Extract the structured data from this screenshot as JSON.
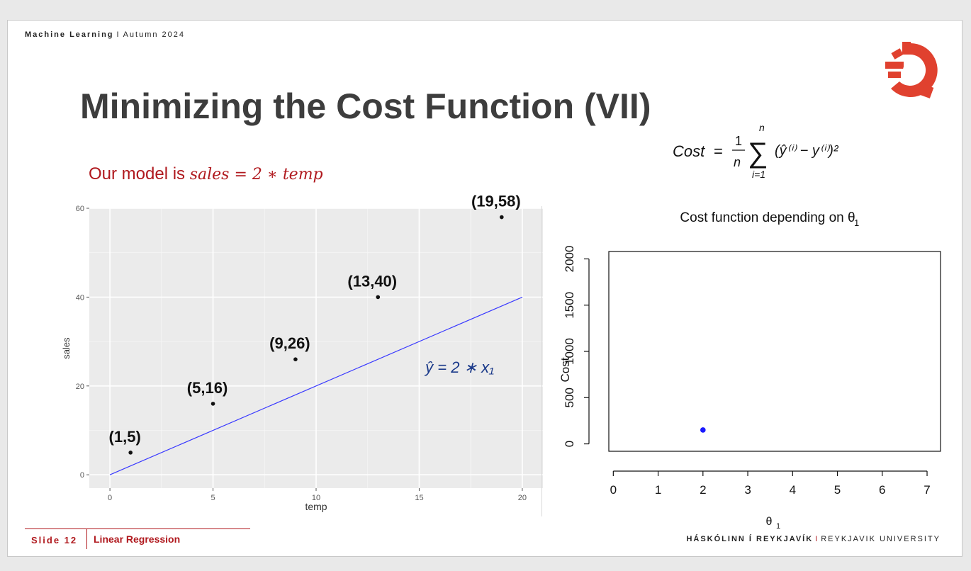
{
  "header": {
    "course": "Machine Learning",
    "separator": "I",
    "term": "Autumn 2024"
  },
  "title": "Minimizing the Cost Function (VII)",
  "model": {
    "prefix": "Our model is ",
    "equation": "sales = 2 ∗ temp"
  },
  "formula": {
    "lhs": "Cost",
    "eq": "=",
    "frac_num": "1",
    "frac_den": "n",
    "sum_top": "n",
    "sum_bottom": "i=1",
    "body": "(ŷ⁽ⁱ⁾ − y⁽ⁱ⁾)²"
  },
  "colors": {
    "accent": "#b0191e",
    "logo": "#e0412f",
    "fit_line": "#3a3aff",
    "cost_point": "#1a1aff",
    "panel_bg": "#ebebeb",
    "annotation_blue": "#1b3a8a"
  },
  "chart_data": [
    {
      "type": "scatter",
      "xlabel": "temp",
      "ylabel": "sales",
      "xlim": [
        -1,
        21
      ],
      "ylim": [
        -3,
        60
      ],
      "x_ticks": [
        0,
        5,
        10,
        15,
        20
      ],
      "y_ticks": [
        0,
        20,
        40,
        60
      ],
      "grid": true,
      "points": [
        {
          "x": 1,
          "y": 5,
          "label": "(1,5)"
        },
        {
          "x": 5,
          "y": 16,
          "label": "(5,16)"
        },
        {
          "x": 9,
          "y": 26,
          "label": "(9,26)"
        },
        {
          "x": 13,
          "y": 40,
          "label": "(13,40)"
        },
        {
          "x": 19,
          "y": 58,
          "label": "(19,58)"
        }
      ],
      "line": {
        "x": [
          0,
          20
        ],
        "y": [
          0,
          40
        ],
        "label": "ŷ = 2 ∗ x₁"
      }
    },
    {
      "type": "scatter",
      "title": "Cost function depending on θ",
      "title_subscript": "1",
      "xlabel": "θ",
      "xlabel_subscript": "1",
      "ylabel": "Cost",
      "xlim": [
        -0.1,
        7.3
      ],
      "ylim": [
        -80,
        2080
      ],
      "x_ticks": [
        0,
        1,
        2,
        3,
        4,
        5,
        6,
        7
      ],
      "y_ticks": [
        0,
        500,
        1000,
        1500,
        2000
      ],
      "points": [
        {
          "x": 2,
          "y": 150
        }
      ]
    }
  ],
  "footer": {
    "slide_label": "Slide 12",
    "topic": "Linear Regression",
    "university_native": "HÁSKÓLINN Í REYKJAVÍK",
    "separator": "I",
    "university_en": "REYKJAVIK UNIVERSITY"
  },
  "logo": {
    "name": "reykjavik-university-logo"
  }
}
